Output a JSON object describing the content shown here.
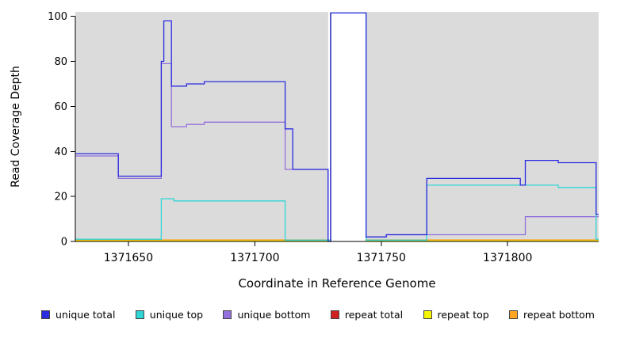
{
  "chart_data": {
    "type": "line",
    "title": "",
    "xlabel": "Coordinate in Reference Genome",
    "ylabel": "Read Coverage Depth",
    "xlim": [
      1371629,
      1371836
    ],
    "ylim": [
      0,
      102
    ],
    "x_ticks": [
      1371650,
      1371700,
      1371750,
      1371800
    ],
    "y_ticks": [
      0,
      20,
      40,
      60,
      80,
      100
    ],
    "plot_background": "#DBDBDB",
    "gap_band": {
      "x_start": 1371729,
      "x_end": 1371744,
      "color": "#FFFFFF",
      "note": "off-scale coverage region, lines clipped at top of axis"
    },
    "series": [
      {
        "name": "repeat total",
        "color": "#D02020",
        "steps": [
          [
            1371629,
            1371730,
            0.4
          ],
          [
            1371730,
            1371744,
            101.5
          ],
          [
            1371744,
            1371836,
            0.4
          ]
        ]
      },
      {
        "name": "repeat top",
        "color": "#F5F500",
        "steps": [
          [
            1371629,
            1371730,
            0.4
          ],
          [
            1371730,
            1371744,
            101.5
          ],
          [
            1371744,
            1371836,
            0.4
          ]
        ]
      },
      {
        "name": "repeat bottom",
        "color": "#FFA520",
        "steps": [
          [
            1371629,
            1371730,
            0.7
          ],
          [
            1371730,
            1371744,
            101.5
          ],
          [
            1371744,
            1371836,
            0.7
          ]
        ]
      },
      {
        "name": "unique bottom",
        "color": "#9370DB",
        "steps": [
          [
            1371629,
            1371646,
            38
          ],
          [
            1371646,
            1371663,
            28
          ],
          [
            1371663,
            1371667,
            79
          ],
          [
            1371667,
            1371673,
            51
          ],
          [
            1371673,
            1371680,
            52
          ],
          [
            1371680,
            1371712,
            53
          ],
          [
            1371712,
            1371729,
            32
          ],
          [
            1371729,
            1371730,
            0.5
          ],
          [
            1371730,
            1371744,
            101.5
          ],
          [
            1371744,
            1371752,
            2
          ],
          [
            1371752,
            1371807,
            3
          ],
          [
            1371807,
            1371836,
            11
          ]
        ]
      },
      {
        "name": "unique top",
        "color": "#30D5D5",
        "steps": [
          [
            1371629,
            1371663,
            1
          ],
          [
            1371663,
            1371668,
            19
          ],
          [
            1371668,
            1371712,
            18
          ],
          [
            1371712,
            1371730,
            0.6
          ],
          [
            1371730,
            1371744,
            101.5
          ],
          [
            1371744,
            1371768,
            0.6
          ],
          [
            1371768,
            1371820,
            25
          ],
          [
            1371820,
            1371835,
            24
          ],
          [
            1371835,
            1371836,
            1
          ]
        ]
      },
      {
        "name": "unique total",
        "color": "#2B2BE0",
        "steps": [
          [
            1371629,
            1371646,
            39
          ],
          [
            1371646,
            1371663,
            29
          ],
          [
            1371663,
            1371664,
            80
          ],
          [
            1371664,
            1371667,
            98
          ],
          [
            1371667,
            1371673,
            69
          ],
          [
            1371673,
            1371680,
            70
          ],
          [
            1371680,
            1371712,
            71
          ],
          [
            1371712,
            1371715,
            50
          ],
          [
            1371715,
            1371729,
            32
          ],
          [
            1371729,
            1371730,
            0
          ],
          [
            1371730,
            1371744,
            101.5
          ],
          [
            1371744,
            1371752,
            2
          ],
          [
            1371752,
            1371768,
            3
          ],
          [
            1371768,
            1371805,
            28
          ],
          [
            1371805,
            1371807,
            25
          ],
          [
            1371807,
            1371820,
            36
          ],
          [
            1371820,
            1371835,
            35
          ],
          [
            1371835,
            1371836,
            12
          ]
        ]
      }
    ]
  },
  "legend": {
    "items": [
      {
        "label": "unique total",
        "color": "#2B2BE0"
      },
      {
        "label": "unique top",
        "color": "#30D5D5"
      },
      {
        "label": "unique bottom",
        "color": "#9370DB"
      },
      {
        "label": "repeat total",
        "color": "#D02020"
      },
      {
        "label": "repeat top",
        "color": "#F5F500"
      },
      {
        "label": "repeat bottom",
        "color": "#FFA520"
      }
    ]
  }
}
